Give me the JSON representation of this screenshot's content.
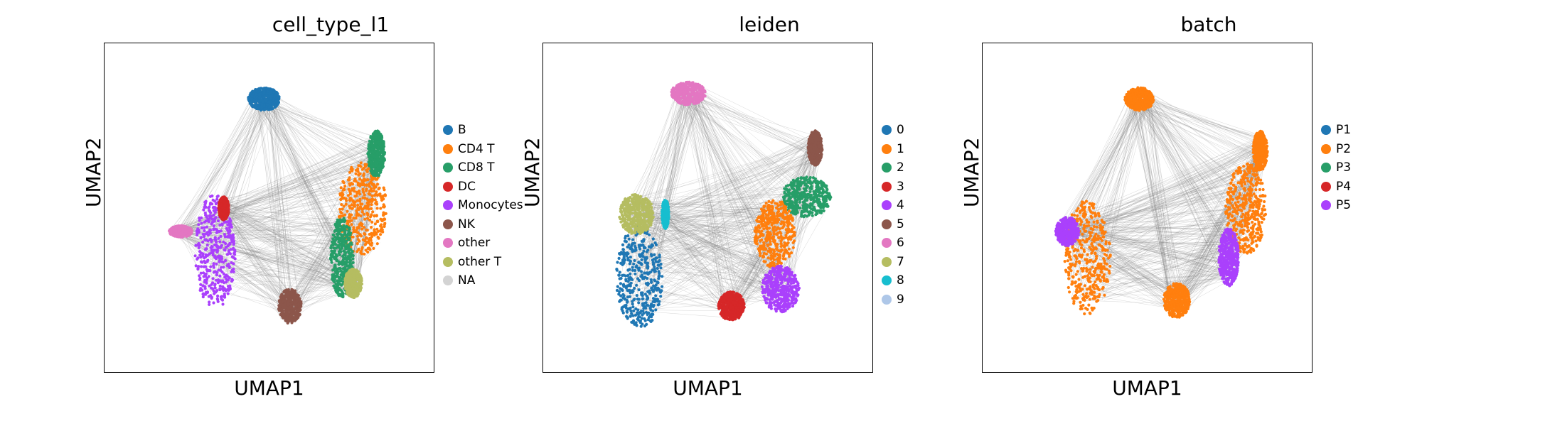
{
  "chart_data": [
    {
      "type": "scatter",
      "title": "cell_type_l1",
      "xlabel": "UMAP1",
      "ylabel": "UMAP2",
      "grid": false,
      "legend_position": "right",
      "categories": [
        {
          "name": "B",
          "color": "#1f77b4"
        },
        {
          "name": "CD4 T",
          "color": "#ff7f0e"
        },
        {
          "name": "CD8 T",
          "color": "#279e68"
        },
        {
          "name": "DC",
          "color": "#d62728"
        },
        {
          "name": "Monocytes",
          "color": "#aa40fc"
        },
        {
          "name": "NK",
          "color": "#8c564b"
        },
        {
          "name": "other",
          "color": "#e377c2"
        },
        {
          "name": "other T",
          "color": "#b5bd61"
        },
        {
          "name": "NA",
          "color": "#d3d3d3"
        }
      ],
      "edge_color": "#808080",
      "clusters": [
        {
          "label": "B",
          "shape": "blob",
          "cx": 0.48,
          "cy": 0.88,
          "rx": 0.055,
          "ry": 0.04
        },
        {
          "label": "Monocytes",
          "shape": "blob",
          "cx": 0.31,
          "cy": 0.35,
          "rx": 0.07,
          "ry": 0.2
        },
        {
          "label": "DC",
          "shape": "blob",
          "cx": 0.34,
          "cy": 0.5,
          "rx": 0.018,
          "ry": 0.04
        },
        {
          "label": "other",
          "shape": "blob",
          "cx": 0.19,
          "cy": 0.42,
          "rx": 0.04,
          "ry": 0.02
        },
        {
          "label": "CD4 T",
          "shape": "blob",
          "cx": 0.82,
          "cy": 0.5,
          "rx": 0.085,
          "ry": 0.16
        },
        {
          "label": "CD8 T",
          "shape": "blob",
          "cx": 0.75,
          "cy": 0.33,
          "rx": 0.04,
          "ry": 0.14
        },
        {
          "label": "CD8 T",
          "shape": "blob",
          "cx": 0.87,
          "cy": 0.69,
          "rx": 0.03,
          "ry": 0.08
        },
        {
          "label": "other T",
          "shape": "blob",
          "cx": 0.79,
          "cy": 0.24,
          "rx": 0.03,
          "ry": 0.05
        },
        {
          "label": "NK",
          "shape": "blob",
          "cx": 0.57,
          "cy": 0.16,
          "rx": 0.04,
          "ry": 0.06
        }
      ]
    },
    {
      "type": "scatter",
      "title": "leiden",
      "xlabel": "UMAP1",
      "ylabel": "UMAP2",
      "grid": false,
      "legend_position": "right",
      "categories": [
        {
          "name": "0",
          "color": "#1f77b4"
        },
        {
          "name": "1",
          "color": "#ff7f0e"
        },
        {
          "name": "2",
          "color": "#279e68"
        },
        {
          "name": "3",
          "color": "#d62728"
        },
        {
          "name": "4",
          "color": "#aa40fc"
        },
        {
          "name": "5",
          "color": "#8c564b"
        },
        {
          "name": "6",
          "color": "#e377c2"
        },
        {
          "name": "7",
          "color": "#b5bd61"
        },
        {
          "name": "8",
          "color": "#17becf"
        },
        {
          "name": "9",
          "color": "#aec7e8"
        }
      ],
      "edge_color": "#808080",
      "clusters": [
        {
          "label": "6",
          "shape": "blob",
          "cx": 0.43,
          "cy": 0.9,
          "rx": 0.06,
          "ry": 0.04
        },
        {
          "label": "0",
          "shape": "blob",
          "cx": 0.26,
          "cy": 0.26,
          "rx": 0.08,
          "ry": 0.18
        },
        {
          "label": "7",
          "shape": "blob",
          "cx": 0.25,
          "cy": 0.48,
          "rx": 0.06,
          "ry": 0.07
        },
        {
          "label": "8",
          "shape": "blob",
          "cx": 0.35,
          "cy": 0.48,
          "rx": 0.012,
          "ry": 0.05
        },
        {
          "label": "5",
          "shape": "blob",
          "cx": 0.87,
          "cy": 0.71,
          "rx": 0.025,
          "ry": 0.06
        },
        {
          "label": "2",
          "shape": "blob",
          "cx": 0.84,
          "cy": 0.54,
          "rx": 0.085,
          "ry": 0.07
        },
        {
          "label": "1",
          "shape": "blob",
          "cx": 0.73,
          "cy": 0.41,
          "rx": 0.07,
          "ry": 0.12
        },
        {
          "label": "4",
          "shape": "blob",
          "cx": 0.75,
          "cy": 0.22,
          "rx": 0.065,
          "ry": 0.08
        },
        {
          "label": "3",
          "shape": "blob",
          "cx": 0.58,
          "cy": 0.16,
          "rx": 0.045,
          "ry": 0.05
        }
      ]
    },
    {
      "type": "scatter",
      "title": "batch",
      "xlabel": "UMAP1",
      "ylabel": "UMAP2",
      "grid": false,
      "legend_position": "right",
      "categories": [
        {
          "name": "P1",
          "color": "#1f77b4"
        },
        {
          "name": "P2",
          "color": "#ff7f0e"
        },
        {
          "name": "P3",
          "color": "#279e68"
        },
        {
          "name": "P4",
          "color": "#d62728"
        },
        {
          "name": "P5",
          "color": "#aa40fc"
        }
      ],
      "edge_color": "#808080",
      "clusters": [
        {
          "label": "P2",
          "shape": "blob",
          "cx": 0.47,
          "cy": 0.88,
          "rx": 0.05,
          "ry": 0.04
        },
        {
          "label": "P2",
          "shape": "blob",
          "cx": 0.29,
          "cy": 0.33,
          "rx": 0.08,
          "ry": 0.2
        },
        {
          "label": "P5",
          "shape": "blob",
          "cx": 0.22,
          "cy": 0.42,
          "rx": 0.04,
          "ry": 0.05
        },
        {
          "label": "P2",
          "shape": "blob",
          "cx": 0.84,
          "cy": 0.5,
          "rx": 0.07,
          "ry": 0.16
        },
        {
          "label": "P2",
          "shape": "blob",
          "cx": 0.89,
          "cy": 0.7,
          "rx": 0.025,
          "ry": 0.07
        },
        {
          "label": "P2",
          "shape": "blob",
          "cx": 0.6,
          "cy": 0.18,
          "rx": 0.045,
          "ry": 0.06
        },
        {
          "label": "P5",
          "shape": "blob",
          "cx": 0.78,
          "cy": 0.33,
          "rx": 0.035,
          "ry": 0.1
        }
      ]
    }
  ]
}
